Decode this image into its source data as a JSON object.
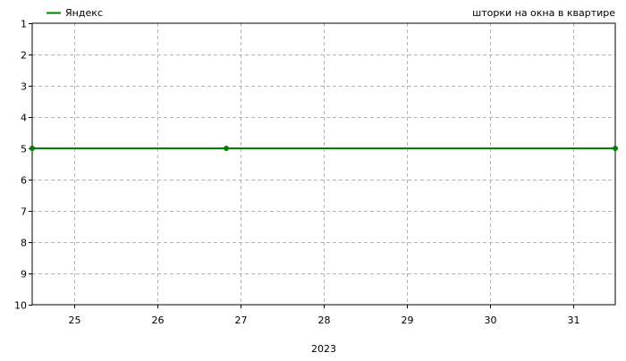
{
  "chart_data": {
    "type": "line",
    "title": "шторки на окна в квартире",
    "xlabel": "2023",
    "ylabel": "",
    "x_ticks": [
      "25",
      "26",
      "27",
      "28",
      "29",
      "30",
      "31"
    ],
    "x_tick_values": [
      25,
      26,
      27,
      28,
      29,
      30,
      31
    ],
    "xlim": [
      24.5,
      31.5
    ],
    "y_ticks": [
      "1",
      "2",
      "3",
      "4",
      "5",
      "6",
      "7",
      "8",
      "9",
      "10"
    ],
    "ylim": [
      1,
      10
    ],
    "y_inverted": true,
    "grid": true,
    "legend_position": "top-left",
    "series": [
      {
        "name": "Яндекс",
        "color": "#008000",
        "x": [
          24.5,
          26.83,
          31.5
        ],
        "y": [
          5,
          5,
          5
        ]
      }
    ]
  }
}
